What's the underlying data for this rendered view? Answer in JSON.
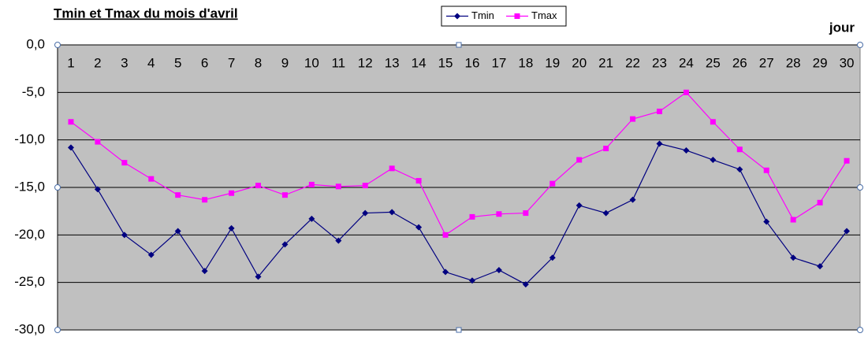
{
  "chart_data": {
    "type": "line",
    "title": "Tmin et Tmax du mois d'avril",
    "x_label": "jour",
    "categories": [
      "1",
      "2",
      "3",
      "4",
      "5",
      "6",
      "7",
      "8",
      "9",
      "10",
      "11",
      "12",
      "13",
      "14",
      "15",
      "16",
      "17",
      "18",
      "19",
      "20",
      "21",
      "22",
      "23",
      "24",
      "25",
      "26",
      "27",
      "28",
      "29",
      "30"
    ],
    "series": [
      {
        "name": "Tmin",
        "color": "#000080",
        "marker": "diamond",
        "values": [
          -10.8,
          -15.2,
          -20.0,
          -22.1,
          -19.6,
          -23.8,
          -19.3,
          -24.4,
          -21.0,
          -18.3,
          -20.6,
          -17.7,
          -17.6,
          -19.2,
          -23.9,
          -24.8,
          -23.7,
          -25.2,
          -22.4,
          -16.9,
          -17.7,
          -16.3,
          -10.4,
          -11.1,
          -12.1,
          -13.1,
          -18.6,
          -22.4,
          -23.3,
          -19.6
        ]
      },
      {
        "name": "Tmax",
        "color": "#ff00ff",
        "marker": "square",
        "values": [
          -8.1,
          -10.2,
          -12.4,
          -14.1,
          -15.8,
          -16.3,
          -15.6,
          -14.8,
          -15.8,
          -14.7,
          -14.9,
          -14.8,
          -13.0,
          -14.3,
          -20.0,
          -18.1,
          -17.8,
          -17.7,
          -14.6,
          -12.1,
          -10.9,
          -7.8,
          -7.0,
          -5.0,
          -8.1,
          -11.0,
          -13.2,
          -18.4,
          -16.6,
          -12.2
        ]
      }
    ],
    "ylim": [
      -30,
      0
    ],
    "yticks": [
      {
        "value": 0,
        "label": "0,0"
      },
      {
        "value": -5,
        "label": "-5,0"
      },
      {
        "value": -10,
        "label": "-10,0"
      },
      {
        "value": -15,
        "label": "-15,0"
      },
      {
        "value": -20,
        "label": "-20,0"
      },
      {
        "value": -25,
        "label": "-25,0"
      },
      {
        "value": -30,
        "label": "-30,0"
      }
    ],
    "grid": true,
    "plot_background": "#c0c0c0",
    "legend_position": "top"
  }
}
